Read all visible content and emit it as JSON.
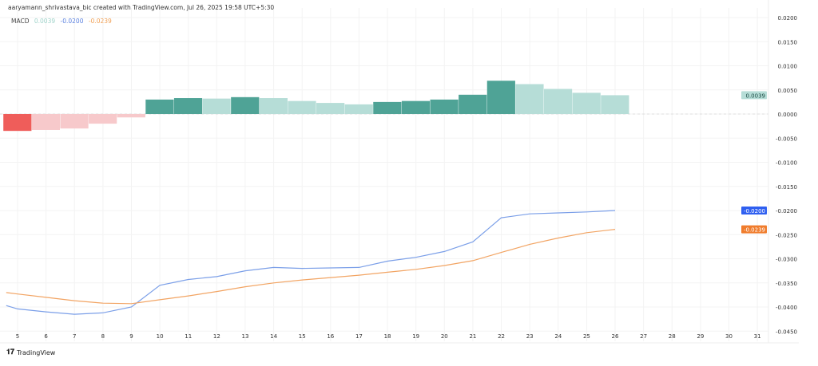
{
  "header": {
    "credit": "aaryamann_shrivastava_bic created with TradingView.com, Jul 26, 2025 19:58 UTC+5:30",
    "indicator": "MACD",
    "hist_value": "0.0039",
    "macd_value": "-0.0200",
    "signal_value": "-0.0239"
  },
  "footer": {
    "brand": "TradingView"
  },
  "colors": {
    "hist_pos_strong": "#4fa396",
    "hist_pos_weak": "#b6ddd7",
    "hist_neg_strong": "#ef5d5a",
    "hist_neg_weak": "#f7c9cb",
    "macd": "#7b9fe8",
    "signal": "#f2a463",
    "macd_badge": "#2f5ff0",
    "signal_badge": "#f07c2c",
    "hist_badge": "#b6ddd7"
  },
  "chart_data": {
    "type": "bar+line",
    "x_ticks": [
      "5",
      "6",
      "7",
      "8",
      "9",
      "10",
      "11",
      "12",
      "13",
      "14",
      "15",
      "16",
      "17",
      "18",
      "19",
      "20",
      "21",
      "22",
      "23",
      "24",
      "25",
      "26",
      "27",
      "28",
      "29",
      "30",
      "31"
    ],
    "y_ticks": [
      "0.0200",
      "0.0150",
      "0.0100",
      "0.0050",
      "0.0000",
      "-0.0050",
      "-0.0100",
      "-0.0150",
      "-0.0200",
      "-0.0250",
      "-0.0300",
      "-0.0350",
      "-0.0400",
      "-0.0450"
    ],
    "ylim": [
      -0.047,
      0.021
    ],
    "xlim": [
      4.6,
      31.5
    ],
    "histogram": {
      "x": [
        5,
        6,
        7,
        8,
        9,
        10,
        11,
        12,
        13,
        14,
        15,
        16,
        17,
        18,
        19,
        20,
        21,
        22,
        23,
        24,
        25,
        26
      ],
      "values": [
        -0.0035,
        -0.0033,
        -0.003,
        -0.002,
        -0.0007,
        0.003,
        0.0033,
        0.0032,
        0.0035,
        0.0033,
        0.0027,
        0.0023,
        0.002,
        0.0025,
        0.0027,
        0.003,
        0.004,
        0.0069,
        0.0062,
        0.0052,
        0.0044,
        0.0039
      ]
    },
    "series": [
      {
        "key": "macd",
        "x": [
          4.6,
          5,
          6,
          7,
          8,
          9,
          10,
          11,
          12,
          13,
          14,
          15,
          16,
          17,
          18,
          19,
          20,
          21,
          22,
          23,
          24,
          25,
          26
        ],
        "values": [
          -0.0397,
          -0.0404,
          -0.041,
          -0.0415,
          -0.0412,
          -0.04,
          -0.0355,
          -0.0343,
          -0.0337,
          -0.0325,
          -0.0318,
          -0.032,
          -0.0319,
          -0.0318,
          -0.0305,
          -0.0297,
          -0.0285,
          -0.0265,
          -0.0215,
          -0.0207,
          -0.0205,
          -0.0203,
          -0.02
        ]
      },
      {
        "key": "signal",
        "x": [
          4.6,
          5,
          6,
          7,
          8,
          9,
          10,
          11,
          12,
          13,
          14,
          15,
          16,
          17,
          18,
          19,
          20,
          21,
          22,
          23,
          24,
          25,
          26
        ],
        "values": [
          -0.037,
          -0.0373,
          -0.038,
          -0.0387,
          -0.0392,
          -0.0393,
          -0.0385,
          -0.0377,
          -0.0368,
          -0.0358,
          -0.035,
          -0.0344,
          -0.0339,
          -0.0334,
          -0.0328,
          -0.0322,
          -0.0314,
          -0.0304,
          -0.0287,
          -0.027,
          -0.0257,
          -0.0246,
          -0.0239
        ]
      }
    ],
    "grid": true
  }
}
